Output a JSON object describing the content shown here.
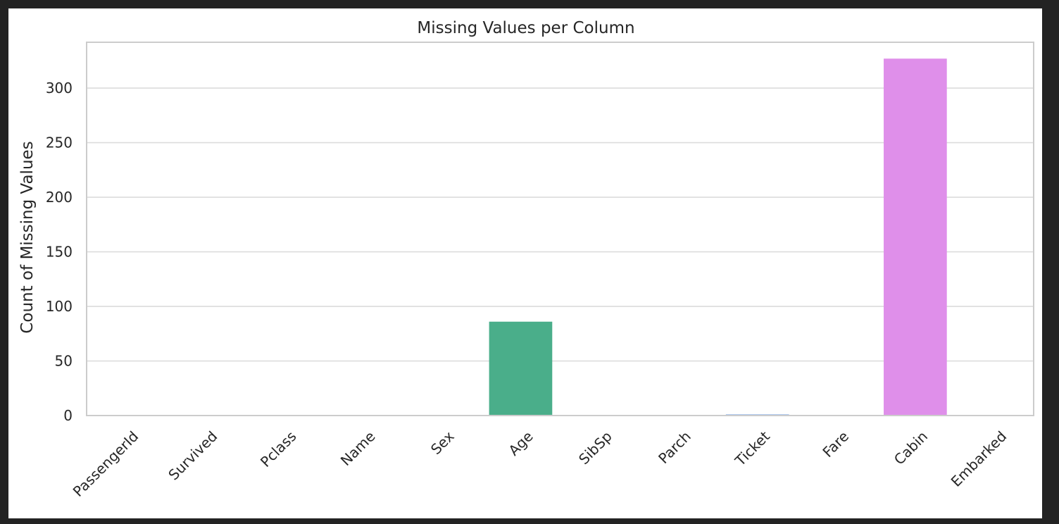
{
  "chart_data": {
    "type": "bar",
    "title": "Missing Values per Column",
    "xlabel": "",
    "ylabel": "Count of Missing Values",
    "categories": [
      "PassengerId",
      "Survived",
      "Pclass",
      "Name",
      "Sex",
      "Age",
      "SibSp",
      "Parch",
      "Ticket",
      "Fare",
      "Cabin",
      "Embarked"
    ],
    "values": [
      0,
      0,
      0,
      0,
      0,
      86,
      0,
      0,
      1,
      0,
      327,
      0
    ],
    "colors": [
      "#e58a8a",
      "#d49a4a",
      "#b5a83a",
      "#8fae3a",
      "#4cb54e",
      "#4aae8a",
      "#4aaea8",
      "#4aa8c8",
      "#6f9fe0",
      "#a88ff0",
      "#df8fea",
      "#ea8fc4"
    ],
    "ylim": [
      0,
      342
    ],
    "yticks": [
      0,
      50,
      100,
      150,
      200,
      250,
      300
    ],
    "grid": true,
    "style": {
      "background": "#ffffff",
      "page_background": "#232323",
      "grid_color": "#dcdcdc",
      "spine_color": "#cccccc",
      "text_color": "#262626"
    }
  }
}
